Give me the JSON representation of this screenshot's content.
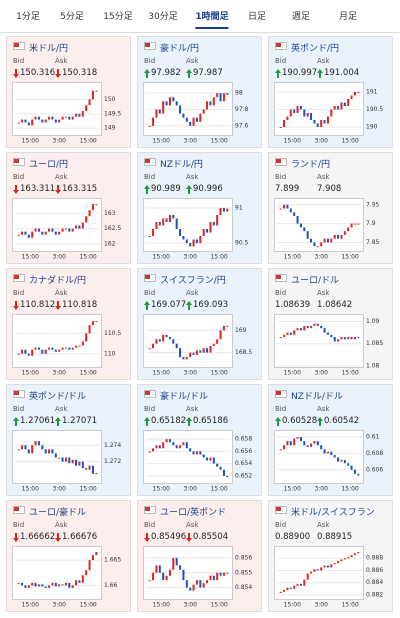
{
  "tabs": [
    "1分足",
    "5分足",
    "15分足",
    "30分足",
    "1時間足",
    "日足",
    "週足",
    "月足"
  ],
  "active_tab": 4,
  "bid_label": "Bid",
  "ask_label": "Ask",
  "chart_xticks": [
    "15:00",
    "3:00",
    "15:00"
  ],
  "tiles": [
    {
      "name": "米ドル/円",
      "bid": "150.316",
      "ask": "150.318",
      "trend": "down",
      "ylim": [
        148.8,
        150.5
      ],
      "yticks": [
        149,
        149.5,
        150
      ],
      "values": [
        149.2,
        149.3,
        149.2,
        149.1,
        149.3,
        149.4,
        149.3,
        149.2,
        149.3,
        149.4,
        149.3,
        149.2,
        149.3,
        149.4,
        149.4,
        149.3,
        149.4,
        149.5,
        149.4,
        149.6,
        149.8,
        150.0,
        150.3,
        150.3
      ]
    },
    {
      "name": "豪ドル/円",
      "bid": "97.982",
      "ask": "97.987",
      "trend": "up",
      "ylim": [
        97.5,
        98.1
      ],
      "yticks": [
        97.6,
        97.8,
        98
      ],
      "values": [
        97.6,
        97.7,
        97.8,
        97.75,
        97.9,
        97.85,
        97.95,
        97.9,
        97.85,
        97.75,
        97.7,
        97.65,
        97.6,
        97.7,
        97.65,
        97.75,
        97.8,
        97.9,
        97.85,
        97.95,
        98.0,
        97.9,
        98.0,
        97.98
      ]
    },
    {
      "name": "英ポンド/円",
      "bid": "190.997",
      "ask": "191.004",
      "trend": "up",
      "ylim": [
        189.8,
        191.2
      ],
      "yticks": [
        190,
        190.5,
        191
      ],
      "values": [
        190.0,
        190.2,
        190.3,
        190.5,
        190.4,
        190.6,
        190.5,
        190.3,
        190.4,
        190.2,
        190.1,
        190.0,
        190.2,
        190.1,
        190.3,
        190.5,
        190.6,
        190.5,
        190.7,
        190.6,
        190.8,
        190.9,
        191.0,
        191.0
      ]
    },
    {
      "name": "ユーロ/円",
      "bid": "163.311",
      "ask": "163.315",
      "trend": "down",
      "ylim": [
        161.8,
        163.4
      ],
      "yticks": [
        162,
        162.5,
        163
      ],
      "values": [
        162.3,
        162.4,
        162.3,
        162.2,
        162.4,
        162.5,
        162.4,
        162.3,
        162.4,
        162.5,
        162.4,
        162.3,
        162.4,
        162.5,
        162.5,
        162.4,
        162.5,
        162.6,
        162.5,
        162.7,
        162.9,
        163.1,
        163.3,
        163.3
      ]
    },
    {
      "name": "NZドル/円",
      "bid": "90.989",
      "ask": "90.996",
      "trend": "up",
      "ylim": [
        90.4,
        91.1
      ],
      "yticks": [
        90.5,
        91
      ],
      "values": [
        90.6,
        90.7,
        90.8,
        90.75,
        90.85,
        90.8,
        90.9,
        90.85,
        90.7,
        90.6,
        90.55,
        90.5,
        90.45,
        90.55,
        90.5,
        90.6,
        90.7,
        90.65,
        90.8,
        90.75,
        90.9,
        91.0,
        90.95,
        90.99
      ]
    },
    {
      "name": "ランド/円",
      "bid": "7.899",
      "ask": "7.908",
      "trend": "none",
      "ylim": [
        7.83,
        7.96
      ],
      "yticks": [
        7.85,
        7.9,
        7.95
      ],
      "values": [
        7.94,
        7.95,
        7.94,
        7.93,
        7.92,
        7.9,
        7.89,
        7.88,
        7.86,
        7.85,
        7.84,
        7.84,
        7.85,
        7.86,
        7.85,
        7.86,
        7.87,
        7.86,
        7.87,
        7.88,
        7.89,
        7.9,
        7.9,
        7.9
      ]
    },
    {
      "name": "カナダドル/円",
      "bid": "110.812",
      "ask": "110.818",
      "trend": "down",
      "ylim": [
        109.7,
        110.9
      ],
      "yticks": [
        110,
        110.5
      ],
      "values": [
        110.0,
        110.1,
        110.0,
        109.95,
        110.1,
        110.15,
        110.1,
        110.0,
        110.1,
        110.15,
        110.1,
        110.05,
        110.1,
        110.15,
        110.15,
        110.1,
        110.15,
        110.2,
        110.2,
        110.3,
        110.5,
        110.7,
        110.8,
        110.8
      ]
    },
    {
      "name": "スイスフラン/円",
      "bid": "169.077",
      "ask": "169.093",
      "trend": "up",
      "ylim": [
        168.2,
        169.3
      ],
      "yticks": [
        168.5,
        169
      ],
      "values": [
        168.6,
        168.7,
        168.8,
        168.75,
        168.9,
        168.85,
        168.8,
        168.7,
        168.6,
        168.4,
        168.35,
        168.4,
        168.5,
        168.45,
        168.55,
        168.5,
        168.6,
        168.5,
        168.65,
        168.7,
        168.8,
        169.0,
        169.1,
        169.08
      ]
    },
    {
      "name": "ユーロ/ドル",
      "bid": "1.08639",
      "ask": "1.08642",
      "trend": "none",
      "ylim": [
        1.08,
        1.091
      ],
      "yticks": [
        1.08,
        1.085,
        1.09
      ],
      "values": [
        1.0865,
        1.087,
        1.0875,
        1.087,
        1.088,
        1.0885,
        1.088,
        1.089,
        1.0885,
        1.089,
        1.0895,
        1.089,
        1.0885,
        1.0875,
        1.087,
        1.0865,
        1.0855,
        1.086,
        1.0865,
        1.086,
        1.0865,
        1.086,
        1.0865,
        1.0864
      ]
    },
    {
      "name": "英ポンド/ドル",
      "bid": "1.27061",
      "ask": "1.27071",
      "trend": "up",
      "ylim": [
        1.2695,
        1.2755
      ],
      "yticks": [
        1.272,
        1.274
      ],
      "values": [
        1.2735,
        1.274,
        1.2735,
        1.273,
        1.274,
        1.2745,
        1.274,
        1.2735,
        1.273,
        1.2735,
        1.273,
        1.2725,
        1.2725,
        1.272,
        1.2725,
        1.2718,
        1.2722,
        1.2715,
        1.272,
        1.2712,
        1.271,
        1.2715,
        1.2705,
        1.2706
      ]
    },
    {
      "name": "豪ドル/ドル",
      "bid": "0.65182",
      "ask": "0.65186",
      "trend": "up",
      "ylim": [
        0.651,
        0.659
      ],
      "yticks": [
        0.652,
        0.654,
        0.656,
        0.658
      ],
      "values": [
        0.656,
        0.6565,
        0.657,
        0.6565,
        0.6575,
        0.658,
        0.6575,
        0.657,
        0.6565,
        0.657,
        0.6575,
        0.6565,
        0.656,
        0.6555,
        0.656,
        0.6555,
        0.655,
        0.6545,
        0.655,
        0.654,
        0.6535,
        0.653,
        0.652,
        0.6518
      ]
    },
    {
      "name": "NZドル/ドル",
      "bid": "0.60528",
      "ask": "0.60542",
      "trend": "up",
      "ylim": [
        0.6045,
        0.6105
      ],
      "yticks": [
        0.606,
        0.608,
        0.61
      ],
      "values": [
        0.6085,
        0.609,
        0.6095,
        0.609,
        0.6098,
        0.61,
        0.6095,
        0.609,
        0.6088,
        0.6092,
        0.6095,
        0.609,
        0.6085,
        0.608,
        0.6082,
        0.6078,
        0.6075,
        0.607,
        0.6072,
        0.6068,
        0.6065,
        0.606,
        0.6055,
        0.6053
      ]
    },
    {
      "name": "ユーロ/豪ドル",
      "bid": "1.66662",
      "ask": "1.66676",
      "trend": "down",
      "ylim": [
        1.6575,
        1.6672
      ],
      "yticks": [
        1.66,
        1.665
      ],
      "values": [
        1.6605,
        1.66,
        1.6595,
        1.66,
        1.6605,
        1.6598,
        1.6602,
        1.6598,
        1.6595,
        1.66,
        1.6605,
        1.6598,
        1.6602,
        1.66,
        1.6605,
        1.6595,
        1.66,
        1.661,
        1.6605,
        1.662,
        1.663,
        1.665,
        1.666,
        1.6666
      ]
    },
    {
      "name": "ユーロ/英ポンド",
      "bid": "0.85496",
      "ask": "0.85504",
      "trend": "down",
      "ylim": [
        0.8533,
        0.8566
      ],
      "yticks": [
        0.854,
        0.855,
        0.856
      ],
      "values": [
        0.8545,
        0.855,
        0.8555,
        0.855,
        0.8545,
        0.8548,
        0.8552,
        0.856,
        0.8555,
        0.8552,
        0.8545,
        0.854,
        0.8538,
        0.8542,
        0.8545,
        0.854,
        0.8543,
        0.8545,
        0.8548,
        0.8545,
        0.855,
        0.8548,
        0.855,
        0.855
      ]
    },
    {
      "name": "米ドル/スイスフラン",
      "bid": "0.88900",
      "ask": "0.88915",
      "trend": "none",
      "ylim": [
        0.8815,
        0.8895
      ],
      "yticks": [
        0.882,
        0.884,
        0.886,
        0.888
      ],
      "values": [
        0.8825,
        0.8828,
        0.8832,
        0.883,
        0.8835,
        0.8838,
        0.8835,
        0.8845,
        0.8855,
        0.8858,
        0.8862,
        0.886,
        0.8865,
        0.8868,
        0.8865,
        0.887,
        0.8872,
        0.8875,
        0.8878,
        0.888,
        0.8882,
        0.8885,
        0.8888,
        0.889
      ]
    }
  ]
}
